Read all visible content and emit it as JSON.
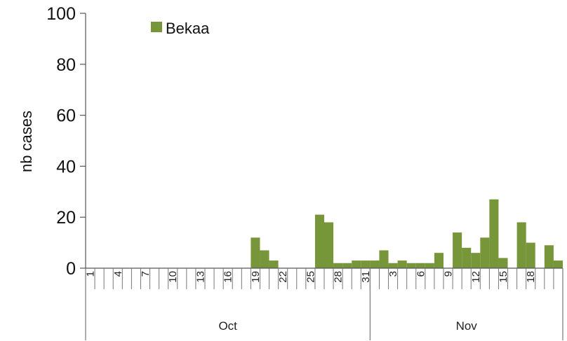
{
  "chart_data": {
    "type": "bar",
    "ylabel": "nb cases",
    "ylim": [
      0,
      100
    ],
    "yticks": [
      0,
      20,
      40,
      60,
      80,
      100
    ],
    "legend": {
      "placement": "top-left"
    },
    "series": [
      {
        "name": "Bekaa",
        "color": "#77963a",
        "values": [
          0,
          0,
          0,
          0,
          0,
          0,
          0,
          0,
          0,
          0,
          0,
          0,
          0,
          0,
          0,
          0,
          0,
          0,
          12,
          7,
          3,
          0,
          0,
          0,
          0,
          21,
          18,
          2,
          2,
          3,
          3,
          3,
          7,
          2,
          3,
          2,
          2,
          2,
          6,
          0,
          14,
          8,
          6,
          12,
          27,
          4,
          0,
          18,
          10,
          0,
          9,
          3
        ]
      }
    ],
    "x_tick_labels": [
      {
        "index": 0,
        "label": "1"
      },
      {
        "index": 3,
        "label": "4"
      },
      {
        "index": 6,
        "label": "7"
      },
      {
        "index": 9,
        "label": "10"
      },
      {
        "index": 12,
        "label": "13"
      },
      {
        "index": 15,
        "label": "16"
      },
      {
        "index": 18,
        "label": "19"
      },
      {
        "index": 21,
        "label": "22"
      },
      {
        "index": 24,
        "label": "25"
      },
      {
        "index": 27,
        "label": "28"
      },
      {
        "index": 30,
        "label": "31"
      },
      {
        "index": 33,
        "label": "3"
      },
      {
        "index": 36,
        "label": "6"
      },
      {
        "index": 39,
        "label": "9"
      },
      {
        "index": 42,
        "label": "12"
      },
      {
        "index": 45,
        "label": "15"
      },
      {
        "index": 48,
        "label": "18"
      }
    ],
    "months": [
      {
        "label": "Oct",
        "start": 0,
        "end": 31
      },
      {
        "label": "Nov",
        "start": 31,
        "end": 52
      }
    ]
  }
}
